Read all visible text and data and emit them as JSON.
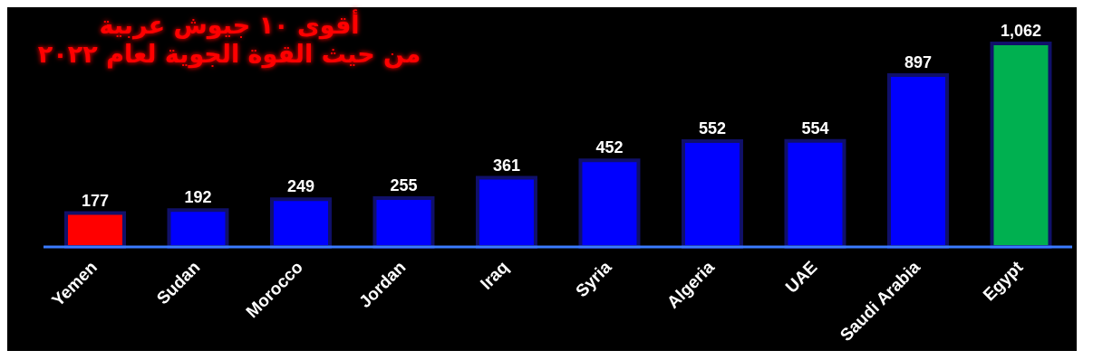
{
  "chart_data": {
    "type": "bar",
    "title": "أقوى ١٠ جيوش عربية",
    "subtitle": "من حيث القوة الجوية لعام ٢٠٢٢",
    "categories": [
      "Yemen",
      "Sudan",
      "Morocco",
      "Jordan",
      "Iraq",
      "Syria",
      "Algeria",
      "UAE",
      "Saudi Arabia",
      "Egypt"
    ],
    "values": [
      177,
      192,
      249,
      255,
      361,
      452,
      552,
      554,
      897,
      1062
    ],
    "colors": [
      "#ff0000",
      "#0000ff",
      "#0000ff",
      "#0000ff",
      "#0000ff",
      "#0000ff",
      "#0000ff",
      "#0000ff",
      "#0000ff",
      "#00b050"
    ],
    "value_labels": [
      "177",
      "192",
      "249",
      "255",
      "361",
      "452",
      "552",
      "554",
      "897",
      "1,062"
    ]
  }
}
